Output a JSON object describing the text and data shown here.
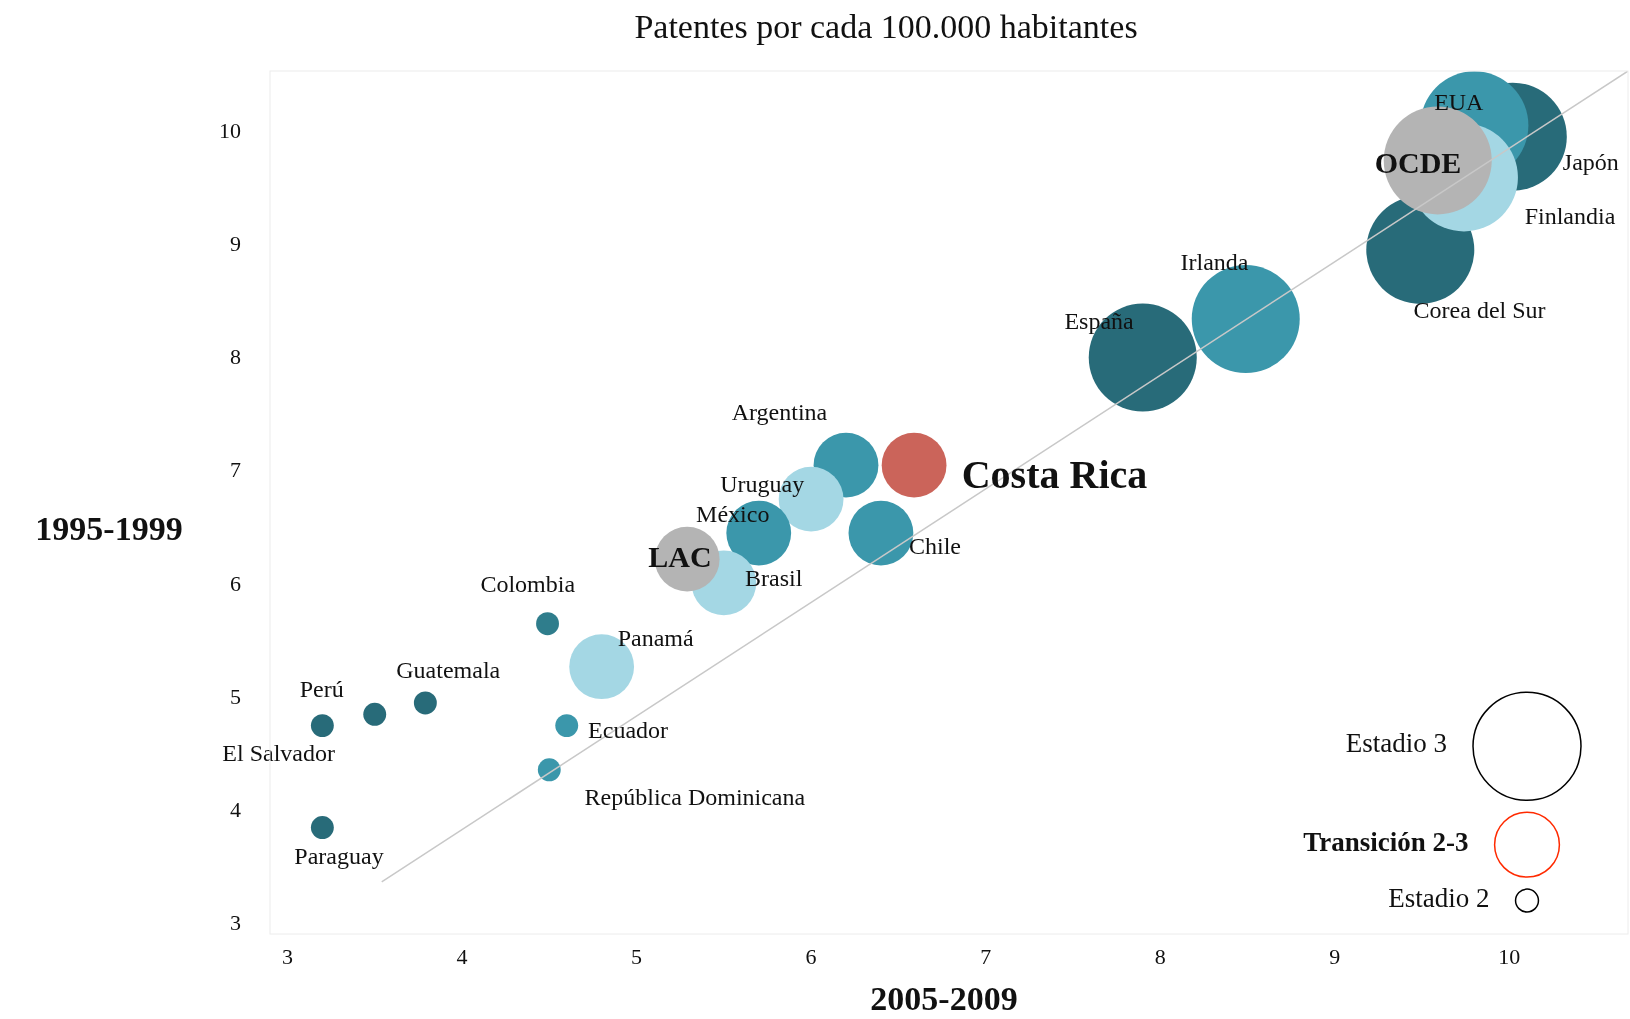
{
  "chart_data": {
    "type": "bubble",
    "title": "Patentes por cada 100.000 habitantes",
    "xlabel": "2005-2009",
    "ylabel": "1995-1999",
    "xlim": [
      2.9,
      10.68
    ],
    "ylim": [
      2.9,
      10.52
    ],
    "xticks": [
      3,
      4,
      5,
      6,
      7,
      8,
      9,
      10
    ],
    "yticks": [
      3,
      4,
      5,
      6,
      7,
      8,
      9,
      10
    ],
    "series": [
      {
        "x": [
          7.9,
          8.49,
          9.49,
          10.02,
          9.8,
          9.74,
          9.59
        ],
        "values": [
          7.99,
          8.33,
          8.94,
          9.94,
          10.04,
          9.58,
          9.73
        ],
        "sizes": [
          1,
          1,
          1,
          1,
          1,
          1,
          1
        ],
        "colors": [
          "#286b79",
          "#3b97ab",
          "#286b79",
          "#286b79",
          "#3b97ab",
          "#a4d7e4",
          "#b4b4b4"
        ]
      },
      {
        "x": [
          6.2,
          6.59,
          6.0,
          5.7,
          6.4,
          5.5,
          5.29,
          4.8
        ],
        "values": [
          7.04,
          7.04,
          6.74,
          6.44,
          6.44,
          6.0,
          6.21,
          5.26
        ],
        "sizes": [
          0.36,
          0.36,
          0.36,
          0.36,
          0.36,
          0.36,
          0.36,
          0.36
        ],
        "colors": [
          "#3b97ab",
          "#cb645a",
          "#a4d7e4",
          "#3b97ab",
          "#3b97ab",
          "#a4d7e4",
          "#b4b4b4",
          "#a4d7e4"
        ]
      },
      {
        "x": [
          3.2,
          3.2,
          3.5,
          3.79,
          4.49,
          4.6,
          4.5
        ],
        "values": [
          3.84,
          4.74,
          4.84,
          4.94,
          5.64,
          4.74,
          4.35
        ],
        "sizes": [
          0.045,
          0.045,
          0.045,
          0.045,
          0.045,
          0.045,
          0.045
        ],
        "colors": [
          "#286b79",
          "#286b79",
          "#286b79",
          "#286b79",
          "#2f7d8c",
          "#3b97ab",
          "#3b97ab"
        ]
      },
      {
        "type": "line",
        "color": "#c8c8c8",
        "x": [
          3.54,
          10.68
        ],
        "values": [
          3.36,
          10.52
        ]
      }
    ],
    "annotations": [
      {
        "text": "Costa Rica",
        "x": 6.59,
        "y": 7.04
      },
      {
        "text": "LAC",
        "x": 5.29,
        "y": 6.21
      },
      {
        "text": "OCDE",
        "x": 9.59,
        "y": 9.73
      },
      {
        "text": "EUA",
        "x": 9.8,
        "y": 10.04
      },
      {
        "text": "Japón",
        "x": 10.02,
        "y": 9.94
      },
      {
        "text": "Finlandia",
        "x": 9.74,
        "y": 9.58
      },
      {
        "text": "Corea del Sur",
        "x": 9.49,
        "y": 8.94
      },
      {
        "text": "Irlanda",
        "x": 8.49,
        "y": 8.33
      },
      {
        "text": "España",
        "x": 7.9,
        "y": 7.99
      },
      {
        "text": "Argentina",
        "x": 6.2,
        "y": 7.04
      },
      {
        "text": "Uruguay",
        "x": 6.0,
        "y": 6.74
      },
      {
        "text": "México",
        "x": 5.7,
        "y": 6.44
      },
      {
        "text": "Chile",
        "x": 6.4,
        "y": 6.44
      },
      {
        "text": "Brasil",
        "x": 5.5,
        "y": 6.0
      },
      {
        "text": "Colombia",
        "x": 4.49,
        "y": 5.64
      },
      {
        "text": "Panamá",
        "x": 4.8,
        "y": 5.26
      },
      {
        "text": "Guatemala",
        "x": 3.79,
        "y": 4.94
      },
      {
        "text": "Perú",
        "x": 3.5,
        "y": 4.84
      },
      {
        "text": "Ecuador",
        "x": 4.6,
        "y": 4.74
      },
      {
        "text": "El Salvador",
        "x": 3.2,
        "y": 4.74
      },
      {
        "text": "República Dominicana",
        "x": 4.5,
        "y": 4.35
      },
      {
        "text": "Paraguay",
        "x": 3.2,
        "y": 3.84
      },
      "Estadio 3",
      "Transición 2-3",
      "Estadio 2"
    ]
  }
}
